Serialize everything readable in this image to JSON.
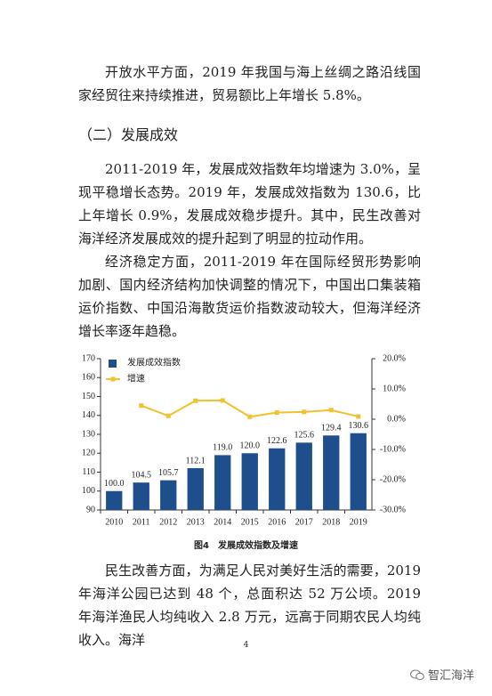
{
  "paragraphs_before": [
    "开放水平方面，2019 年我国与海上丝绸之路沿线国家经贸往来持续推进，贸易额比上年增长 5.8%。"
  ],
  "heading": "（二）发展成效",
  "paragraphs_mid": [
    "2011-2019 年，发展成效指数年均增速为 3.0%，呈现平稳增长态势。2019 年，发展成效指数为 130.6，比上年增长 0.9%，发展成效稳步提升。其中，民生改善对海洋经济发展成效的提升起到了明显的拉动作用。",
    "经济稳定方面，2011-2019 年在国际经贸形势影响加剧、国内经济结构加快调整的情况下，中国出口集装箱运价指数、中国沿海散货运价指数波动较大，但海洋经济增长率逐年趋稳。"
  ],
  "chart_data": {
    "type": "bar",
    "title": "图4　发展成效指数及增速",
    "categories": [
      "2010",
      "2011",
      "2012",
      "2013",
      "2014",
      "2015",
      "2016",
      "2017",
      "2018",
      "2019"
    ],
    "series": [
      {
        "name": "发展成效指数",
        "color": "#1f4e8c",
        "values": [
          100.0,
          104.5,
          105.7,
          112.1,
          119.0,
          120.0,
          122.6,
          125.6,
          129.4,
          130.6
        ],
        "value_labels": [
          "100.0",
          "104.5",
          "105.7",
          "112.1",
          "119.0",
          "120.0",
          "122.6",
          "125.6",
          "129.4",
          "130.6"
        ]
      },
      {
        "name": "增速",
        "type": "line",
        "axis": "y2",
        "color": "#f2c12e",
        "values": [
          null,
          4.5,
          1.1,
          6.1,
          6.2,
          0.8,
          2.2,
          2.4,
          3.0,
          0.9
        ]
      }
    ],
    "ylim": [
      90,
      170
    ],
    "yticks": [
      90,
      100,
      110,
      120,
      130,
      140,
      150,
      160,
      170
    ],
    "y2lim": [
      -30,
      20
    ],
    "y2ticks": [
      {
        "value": -30,
        "label": "-30.0%"
      },
      {
        "value": -20,
        "label": "-20.0%"
      },
      {
        "value": -10,
        "label": "-10.0%"
      },
      {
        "value": 0,
        "label": "0.0%"
      },
      {
        "value": 10,
        "label": "10.0%"
      },
      {
        "value": 20,
        "label": "20.0%"
      }
    ],
    "legend": "top-left",
    "grid": false
  },
  "paragraphs_after": [
    "民生改善方面，为满足人民对美好生活的需要，2019 年海洋公园已达到 48 个，总面积达 52 万公顷。2019 年海洋渔民人均纯收入 2.8 万元，远高于同期农民人均纯收入。海洋"
  ],
  "page_number": "4",
  "watermark": "智汇海洋"
}
